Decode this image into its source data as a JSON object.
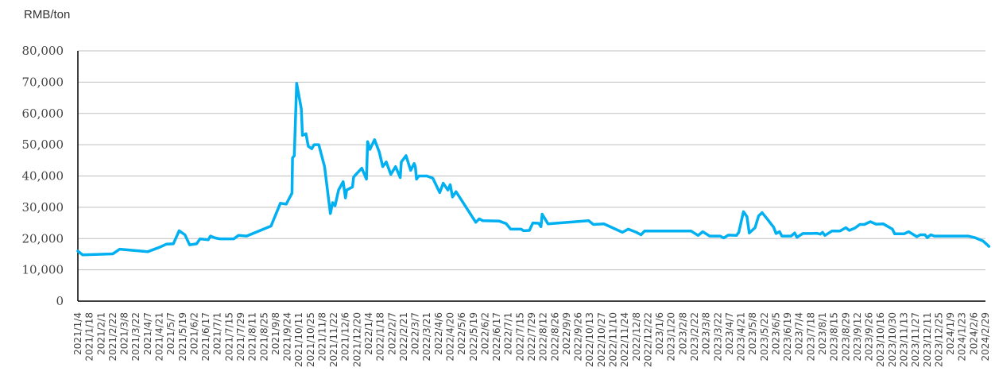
{
  "chart_data": {
    "type": "line",
    "y_unit_label": "RMB/ton",
    "ylim": [
      0,
      80000
    ],
    "y_ticks": [
      0,
      10000,
      20000,
      30000,
      40000,
      50000,
      60000,
      70000,
      80000
    ],
    "y_tick_labels": [
      "0",
      "10,000",
      "20,000",
      "30,000",
      "40,000",
      "50,000",
      "60,000",
      "70,000",
      "80,000"
    ],
    "grid": "horizontal",
    "line_color": "#00b0f0",
    "x_tick_labels": [
      "2021/1/4",
      "2021/1/18",
      "2021/2/1",
      "2021/2/22",
      "2021/3/8",
      "2021/3/22",
      "2021/4/7",
      "2021/4/21",
      "2021/5/7",
      "2021/5/19",
      "2021/6/2",
      "2021/6/17",
      "2021/7/1",
      "2021/7/15",
      "2021/7/29",
      "2021/8/11",
      "2021/8/25",
      "2021/9/8",
      "2021/9/24",
      "2021/10/11",
      "2021/10/25",
      "2021/11/8",
      "2021/11/22",
      "2021/12/6",
      "2021/12/20",
      "2022/1/4",
      "2022/1/18",
      "2022/2/7",
      "2022/2/21",
      "2022/3/7",
      "2022/3/21",
      "2022/4/6",
      "2022/4/20",
      "2022/5/6",
      "2022/5/19",
      "2022/6/2",
      "2022/6/17",
      "2022/7/1",
      "2022/7/15",
      "2022/7/29",
      "2022/8/12",
      "2022/8/26",
      "2022/9/9",
      "2022/9/26",
      "2022/10/13",
      "2022/10/27",
      "2022/11/10",
      "2022/11/24",
      "2022/12/8",
      "2022/12/22",
      "2023/1/6",
      "2023/1/20",
      "2023/2/8",
      "2023/2/22",
      "2023/3/8",
      "2023/3/22",
      "2023/4/7",
      "2023/4/21",
      "2023/5/8",
      "2023/5/22",
      "2023/6/5",
      "2023/6/19",
      "2023/7/4",
      "2023/7/18",
      "2023/8/1",
      "2023/8/15",
      "2023/8/29",
      "2023/9/12",
      "2023/9/26",
      "2023/10/16",
      "2023/10/30",
      "2023/11/13",
      "2023/11/27",
      "2023/12/11",
      "2023/12/25",
      "2024/1/9",
      "2024/1/23",
      "2024/2/6",
      "2024/2/29"
    ],
    "values": [
      [
        0,
        16000
      ],
      [
        0.4,
        14800
      ],
      [
        1.5,
        14900
      ],
      [
        3,
        15100
      ],
      [
        3.6,
        16600
      ],
      [
        6,
        15800
      ],
      [
        7,
        17200
      ],
      [
        7.6,
        18200
      ],
      [
        8.2,
        18300
      ],
      [
        8.7,
        22500
      ],
      [
        9.2,
        21200
      ],
      [
        9.6,
        18000
      ],
      [
        10.2,
        18300
      ],
      [
        10.5,
        19900
      ],
      [
        11.2,
        19600
      ],
      [
        11.4,
        20800
      ],
      [
        11.8,
        20200
      ],
      [
        12.2,
        19900
      ],
      [
        13.4,
        19900
      ],
      [
        13.8,
        21000
      ],
      [
        14.5,
        20800
      ],
      [
        16.6,
        24000
      ],
      [
        17.4,
        31300
      ],
      [
        17.9,
        31000
      ],
      [
        18.4,
        34500
      ],
      [
        18.45,
        45800
      ],
      [
        18.6,
        46500
      ],
      [
        18.8,
        69600
      ],
      [
        19.2,
        61500
      ],
      [
        19.3,
        53000
      ],
      [
        19.6,
        53500
      ],
      [
        19.8,
        49500
      ],
      [
        20.1,
        48700
      ],
      [
        20.3,
        50000
      ],
      [
        20.7,
        50000
      ],
      [
        21.2,
        43000
      ],
      [
        21.7,
        28000
      ],
      [
        21.9,
        31500
      ],
      [
        22.1,
        30500
      ],
      [
        22.4,
        35500
      ],
      [
        22.8,
        38200
      ],
      [
        23.0,
        33000
      ],
      [
        23.1,
        35500
      ],
      [
        23.6,
        36500
      ],
      [
        23.7,
        39700
      ],
      [
        24.4,
        42500
      ],
      [
        24.8,
        39000
      ],
      [
        24.9,
        51000
      ],
      [
        25.1,
        48500
      ],
      [
        25.5,
        51600
      ],
      [
        25.9,
        47700
      ],
      [
        26.2,
        43000
      ],
      [
        26.5,
        44500
      ],
      [
        26.9,
        40500
      ],
      [
        27.3,
        43000
      ],
      [
        27.7,
        39500
      ],
      [
        27.8,
        44500
      ],
      [
        28.2,
        46500
      ],
      [
        28.6,
        41800
      ],
      [
        28.9,
        44000
      ],
      [
        29.0,
        43000
      ],
      [
        29.1,
        39000
      ],
      [
        29.3,
        40000
      ],
      [
        30.0,
        40000
      ],
      [
        30.5,
        39300
      ],
      [
        31.1,
        34700
      ],
      [
        31.4,
        37700
      ],
      [
        31.8,
        35500
      ],
      [
        32.0,
        37200
      ],
      [
        32.2,
        33300
      ],
      [
        32.5,
        35000
      ],
      [
        34.2,
        25200
      ],
      [
        34.5,
        26300
      ],
      [
        34.8,
        25700
      ],
      [
        36.2,
        25600
      ],
      [
        36.8,
        24800
      ],
      [
        37.2,
        23000
      ],
      [
        38.1,
        23000
      ],
      [
        38.3,
        22500
      ],
      [
        38.8,
        22600
      ],
      [
        39.1,
        25000
      ],
      [
        39.6,
        24900
      ],
      [
        39.8,
        23800
      ],
      [
        39.9,
        27800
      ],
      [
        40.4,
        24700
      ],
      [
        41.7,
        25100
      ],
      [
        43.9,
        25700
      ],
      [
        44.3,
        24500
      ],
      [
        45.2,
        24700
      ],
      [
        46.8,
        22000
      ],
      [
        47.3,
        23000
      ],
      [
        48.0,
        22000
      ],
      [
        48.4,
        21200
      ],
      [
        48.7,
        22400
      ],
      [
        49.5,
        22400
      ],
      [
        52.7,
        22400
      ],
      [
        53.3,
        21000
      ],
      [
        53.7,
        22200
      ],
      [
        54.3,
        20800
      ],
      [
        55.2,
        20800
      ],
      [
        55.5,
        20200
      ],
      [
        55.9,
        21100
      ],
      [
        56.6,
        21000
      ],
      [
        56.8,
        22000
      ],
      [
        57.2,
        28600
      ],
      [
        57.5,
        27000
      ],
      [
        57.7,
        21800
      ],
      [
        58.2,
        23500
      ],
      [
        58.5,
        27200
      ],
      [
        58.8,
        28300
      ],
      [
        59.2,
        26500
      ],
      [
        59.8,
        23600
      ],
      [
        60.0,
        21600
      ],
      [
        60.3,
        22200
      ],
      [
        60.5,
        20800
      ],
      [
        61.3,
        20800
      ],
      [
        61.6,
        21800
      ],
      [
        61.8,
        20400
      ],
      [
        62.3,
        21600
      ],
      [
        63.0,
        21600
      ],
      [
        63.5,
        21700
      ],
      [
        63.8,
        21400
      ],
      [
        64.0,
        22000
      ],
      [
        64.2,
        21000
      ],
      [
        64.8,
        22400
      ],
      [
        65.5,
        22400
      ],
      [
        66.0,
        23500
      ],
      [
        66.3,
        22600
      ],
      [
        66.8,
        23400
      ],
      [
        67.2,
        24500
      ],
      [
        67.6,
        24500
      ],
      [
        68.1,
        25400
      ],
      [
        68.6,
        24600
      ],
      [
        69.2,
        24700
      ],
      [
        70.0,
        23000
      ],
      [
        70.2,
        21500
      ],
      [
        71.0,
        21500
      ],
      [
        71.4,
        22200
      ],
      [
        72.1,
        20600
      ],
      [
        72.4,
        21200
      ],
      [
        72.8,
        21200
      ],
      [
        73.0,
        20300
      ],
      [
        73.3,
        21200
      ],
      [
        73.6,
        20800
      ],
      [
        76.0,
        20800
      ],
      [
        76.5,
        20800
      ],
      [
        77.1,
        20300
      ],
      [
        77.8,
        19200
      ],
      [
        78.3,
        17500
      ]
    ]
  }
}
